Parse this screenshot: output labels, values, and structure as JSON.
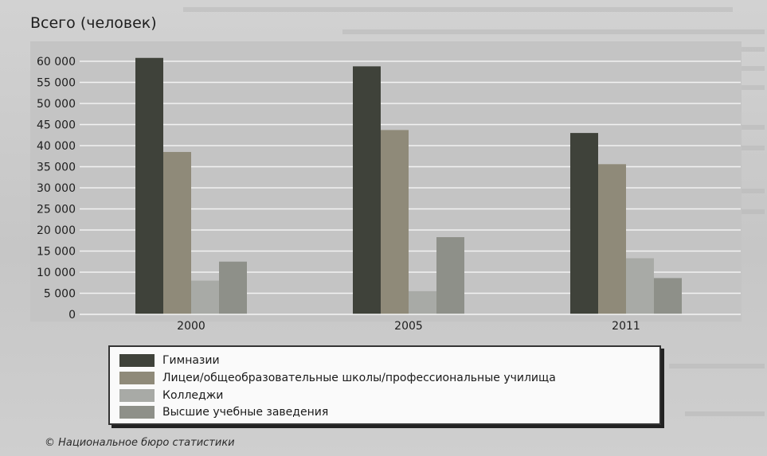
{
  "chart_data": {
    "type": "bar",
    "title": "Всего (человек)",
    "xlabel": "",
    "ylabel": "",
    "categories": [
      "2000",
      "2005",
      "2011"
    ],
    "series": [
      {
        "name": "Гимназии",
        "color": "#3f423a",
        "values": [
          60800,
          58800,
          43000
        ]
      },
      {
        "name": "Лицеи/общеобразовательные школы/профессиональные училища",
        "color": "#8f8a79",
        "values": [
          38500,
          43700,
          35600
        ]
      },
      {
        "name": "Колледжи",
        "color": "#a8aaa6",
        "values": [
          8000,
          5500,
          13300
        ]
      },
      {
        "name": "Высшие учебные заведения",
        "color": "#8e9089",
        "values": [
          12500,
          18300,
          8600
        ]
      }
    ],
    "ylim": [
      0,
      60000
    ],
    "yticks": [
      0,
      5000,
      10000,
      15000,
      20000,
      25000,
      30000,
      35000,
      40000,
      45000,
      50000,
      55000,
      60000
    ],
    "ytick_labels": [
      "0",
      "5 000",
      "10 000",
      "15 000",
      "20 000",
      "25 000",
      "30 000",
      "35 000",
      "40 000",
      "45 000",
      "50 000",
      "55 000",
      "60 000"
    ],
    "grid": true,
    "legend_position": "bottom"
  },
  "source": "© Национальное бюро статистики"
}
